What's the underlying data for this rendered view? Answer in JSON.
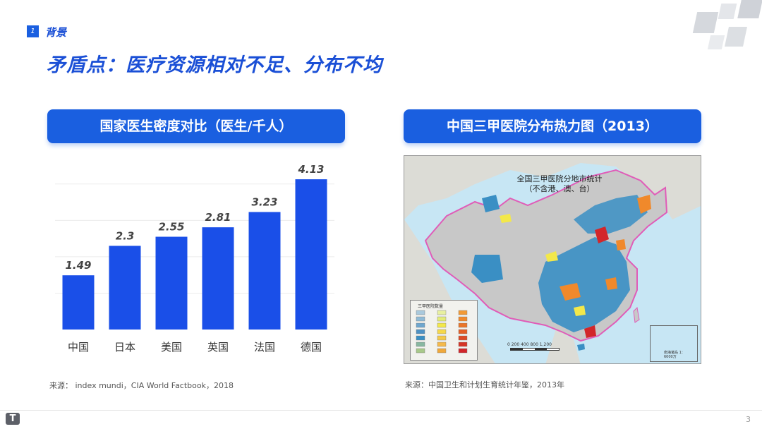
{
  "section": {
    "number": "1",
    "label": "背景"
  },
  "page_title": "矛盾点：医疗资源相对不足、分布不均",
  "left_panel": {
    "header": "国家医生密度对比（医生/千人）",
    "source": "来源： index mundi，CIA World Factbook，2018"
  },
  "right_panel": {
    "header": "中国三甲医院分布热力图（2013）",
    "source": "来源：中国卫生和计划生育统计年鉴，2013年",
    "map": {
      "title_line1": "全国三甲医院分地市统计",
      "title_line2": "（不含港、澳、台）",
      "legend_title": "三甲医院数量",
      "scale_text": "0     200    400         800          1,200",
      "inset_text": "南海诸岛 1：6000万",
      "colors": {
        "sea": "#c7e6f4",
        "land_gray": "#c8c8c8",
        "blue": "#3a8fc4",
        "orange": "#f0892b",
        "red": "#d2262a",
        "yellow": "#f3e84a",
        "border": "#e05cb8"
      }
    }
  },
  "chart_data": {
    "type": "bar",
    "categories": [
      "中国",
      "日本",
      "美国",
      "英国",
      "法国",
      "德国"
    ],
    "values": [
      1.49,
      2.3,
      2.55,
      2.81,
      3.23,
      4.13
    ],
    "value_labels": [
      "1.49",
      "2.3",
      "2.55",
      "2.81",
      "3.23",
      "4.13"
    ],
    "ylim": [
      0,
      4.5
    ],
    "grid": true,
    "bar_color": "#1a4fe8"
  },
  "footer": {
    "logo_glyph": "T",
    "page_number": "3"
  }
}
